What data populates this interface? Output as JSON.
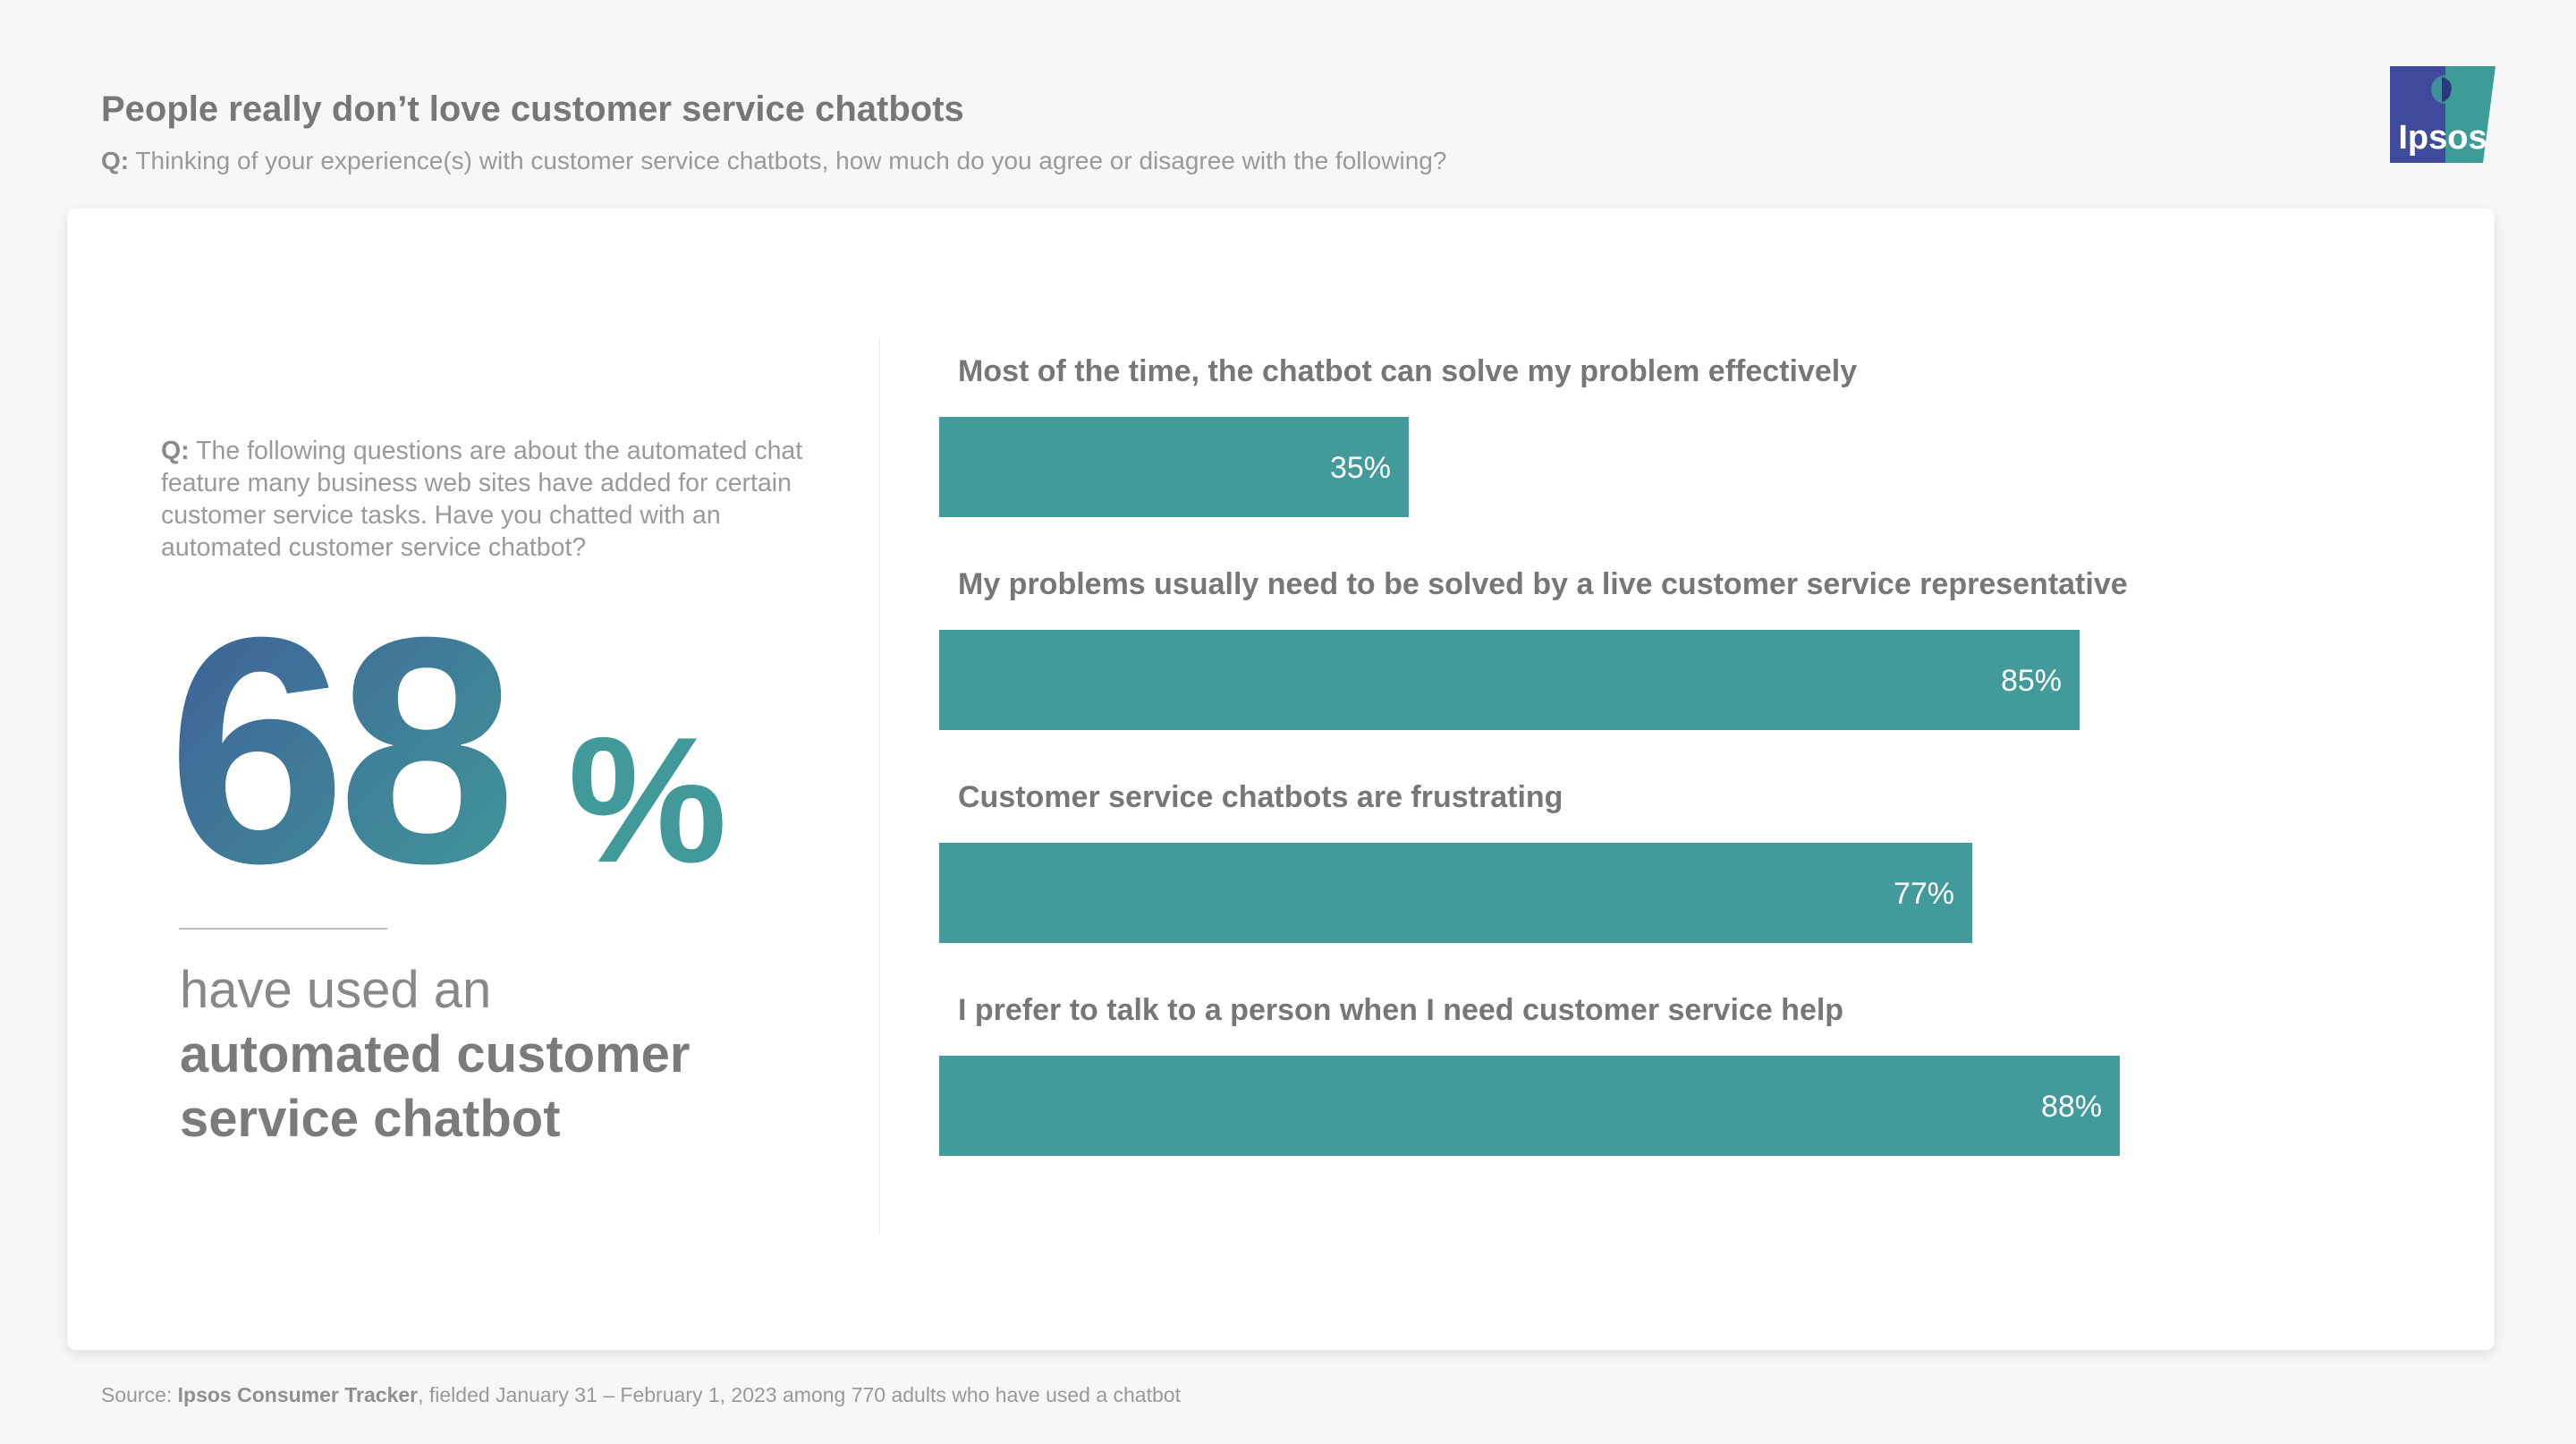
{
  "header": {
    "title": "People really don’t love customer service chatbots",
    "question_prefix": "Q:",
    "question_text": "Thinking of your experience(s) with customer service chatbots, how much do you agree or disagree with the following?"
  },
  "logo": {
    "text": "Ipsos",
    "colors": {
      "left": "#3f4a9c",
      "right": "#3d9b98"
    }
  },
  "left_panel": {
    "question_prefix": "Q:",
    "question_text": "The following questions are about the automated chat feature many business web sites have added for certain customer service tasks. Have you chatted with an automated customer service chatbot?",
    "stat_number": "68",
    "stat_symbol": "%",
    "stat_line1": "have used an",
    "stat_line2": "automated customer",
    "stat_line3": "service chatbot",
    "gradient": [
      "#3e5c98",
      "#419a99"
    ]
  },
  "chart_data": {
    "type": "bar",
    "orientation": "horizontal",
    "categories": [
      "Most of the time, the chatbot can solve my problem effectively",
      "My problems usually need to be solved by a live customer service representative",
      "Customer service chatbots are frustrating",
      "I prefer to talk to a person when I need customer service help"
    ],
    "values": [
      35,
      85,
      77,
      88
    ],
    "value_labels": [
      "35%",
      "85%",
      "77%",
      "88%"
    ],
    "xlim": [
      0,
      100
    ],
    "bar_color": "#429a9b",
    "grid": false
  },
  "footer": {
    "prefix": "Source:",
    "source_name": "Ipsos Consumer Tracker",
    "details": ", fielded January 31 – February 1, 2023 among 770 adults who have used a chatbot"
  }
}
